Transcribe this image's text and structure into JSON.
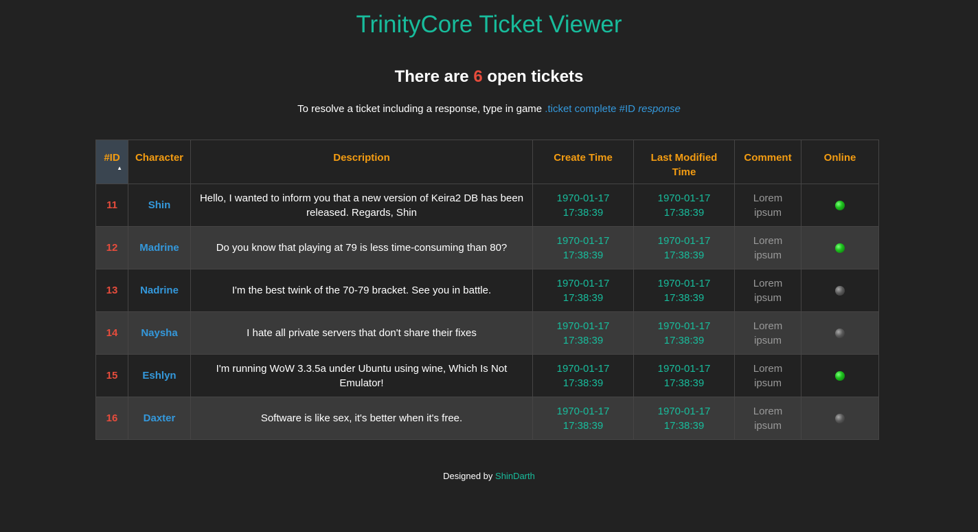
{
  "header": {
    "title": "TrinityCore Ticket Viewer",
    "count_prefix": "There are",
    "count": "6",
    "count_suffix": "open tickets",
    "instructions_prefix": "To resolve a ticket including a response, type in game",
    "command": ".ticket complete #ID",
    "command_arg": "response"
  },
  "table": {
    "columns": {
      "id": "#ID",
      "character": "Character",
      "description": "Description",
      "create_time": "Create Time",
      "last_modified": "Last Modified Time",
      "comment": "Comment",
      "online": "Online"
    },
    "rows": [
      {
        "id": "11",
        "character": "Shin",
        "description": "Hello, I wanted to inform you that a new version of Keira2 DB has been released. Regards, Shin",
        "create_date": "1970-01-17",
        "create_clock": "17:38:39",
        "mod_date": "1970-01-17",
        "mod_clock": "17:38:39",
        "comment": "Lorem ipsum",
        "online": true
      },
      {
        "id": "12",
        "character": "Madrine",
        "description": "Do you know that playing at 79 is less time-consuming than 80?",
        "create_date": "1970-01-17",
        "create_clock": "17:38:39",
        "mod_date": "1970-01-17",
        "mod_clock": "17:38:39",
        "comment": "Lorem ipsum",
        "online": true
      },
      {
        "id": "13",
        "character": "Nadrine",
        "description": "I'm the best twink of the 70-79 bracket. See you in battle.",
        "create_date": "1970-01-17",
        "create_clock": "17:38:39",
        "mod_date": "1970-01-17",
        "mod_clock": "17:38:39",
        "comment": "Lorem ipsum",
        "online": false
      },
      {
        "id": "14",
        "character": "Naysha",
        "description": "I hate all private servers that don't share their fixes",
        "create_date": "1970-01-17",
        "create_clock": "17:38:39",
        "mod_date": "1970-01-17",
        "mod_clock": "17:38:39",
        "comment": "Lorem ipsum",
        "online": false
      },
      {
        "id": "15",
        "character": "Eshlyn",
        "description": "I'm running WoW 3.3.5a under Ubuntu using wine, Which Is Not Emulator!",
        "create_date": "1970-01-17",
        "create_clock": "17:38:39",
        "mod_date": "1970-01-17",
        "mod_clock": "17:38:39",
        "comment": "Lorem ipsum",
        "online": true
      },
      {
        "id": "16",
        "character": "Daxter",
        "description": "Software is like sex, it's better when it's free.",
        "create_date": "1970-01-17",
        "create_clock": "17:38:39",
        "mod_date": "1970-01-17",
        "mod_clock": "17:38:39",
        "comment": "Lorem ipsum",
        "online": false
      }
    ]
  },
  "footer": {
    "prefix": "Designed by",
    "author": "ShinDarth"
  },
  "colors": {
    "background": "#222222",
    "title": "#18bc9c",
    "header": "#f39c12",
    "id": "#e74c3c",
    "character": "#3498db",
    "time": "#18bc9c",
    "online_icon": "green-status-dot-icon",
    "offline_icon": "grey-status-dot-icon"
  }
}
